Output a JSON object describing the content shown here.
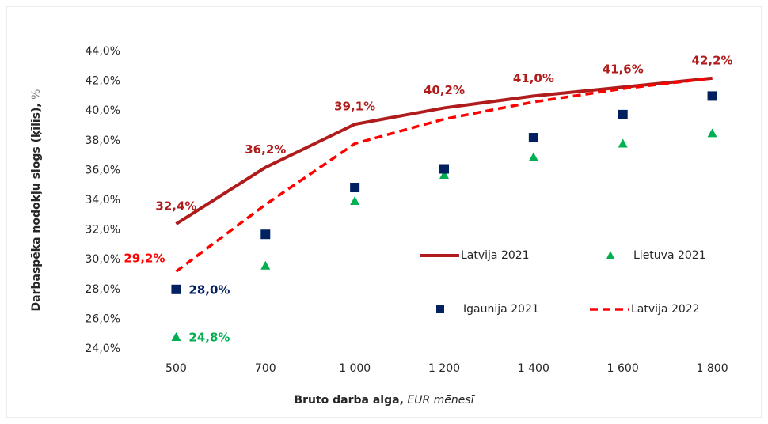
{
  "chart_data": {
    "type": "line",
    "y_label": "Darbaspēka nodokļu slogs (ķīlis),",
    "y_label_unit": "%",
    "x_label": "Bruto darba alga,",
    "x_label_unit": "EUR mēnesī",
    "categories": [
      "500",
      "700",
      "1 000",
      "1 200",
      "1 400",
      "1 600",
      "1 800"
    ],
    "ylim": [
      24,
      44
    ],
    "yticks": [
      {
        "value": 24,
        "label": "24,0%"
      },
      {
        "value": 26,
        "label": "26,0%"
      },
      {
        "value": 28,
        "label": "28,0%"
      },
      {
        "value": 30,
        "label": "30,0%"
      },
      {
        "value": 32,
        "label": "32,0%"
      },
      {
        "value": 34,
        "label": "34,0%"
      },
      {
        "value": 36,
        "label": "36,0%"
      },
      {
        "value": 38,
        "label": "38,0%"
      },
      {
        "value": 40,
        "label": "40,0%"
      },
      {
        "value": 42,
        "label": "42,0%"
      },
      {
        "value": 44,
        "label": "44,0%"
      }
    ],
    "grid": false,
    "series": [
      {
        "name": "Latvija 2021",
        "color": "#b01c1c",
        "values": [
          32.4,
          36.2,
          39.1,
          40.2,
          41.0,
          41.6,
          42.2
        ],
        "value_labels": [
          "32,4%",
          "36,2%",
          "39,1%",
          "40,2%",
          "41,0%",
          "41,6%",
          "42,2%"
        ]
      },
      {
        "name": "Lietuva 2021",
        "color": "#00b050",
        "marker": "triangle",
        "values": [
          24.8,
          29.6,
          33.95,
          35.7,
          36.9,
          37.8,
          38.5
        ],
        "value_labels": [
          "24,8%",
          null,
          null,
          null,
          null,
          null,
          null
        ]
      },
      {
        "name": "Igaunija 2021",
        "color": "#002060",
        "marker": "square",
        "values": [
          28.0,
          31.7,
          34.85,
          36.1,
          38.2,
          39.75,
          41.0
        ],
        "value_labels": [
          "28,0%",
          null,
          null,
          null,
          null,
          null,
          null
        ]
      },
      {
        "name": "Latvija 2022",
        "color": "#ff0000",
        "dash": true,
        "values": [
          29.2,
          33.7,
          37.8,
          39.45,
          40.6,
          41.5,
          42.2
        ],
        "value_labels": [
          "29,2%",
          null,
          null,
          null,
          null,
          null,
          null
        ]
      }
    ]
  }
}
